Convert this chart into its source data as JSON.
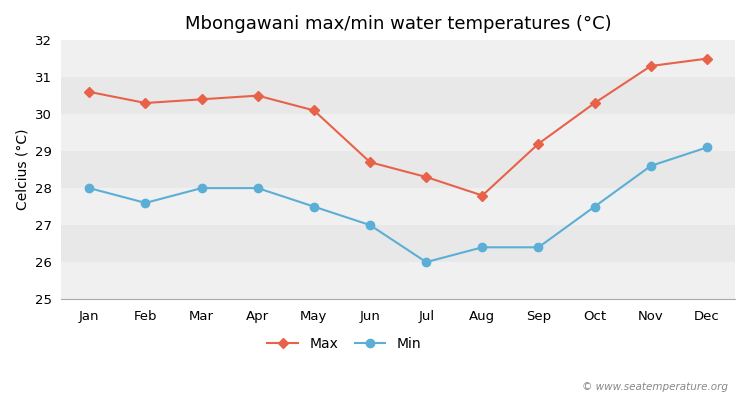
{
  "title": "Mbongawani max/min water temperatures (°C)",
  "ylabel": "Celcius (°C)",
  "months": [
    "Jan",
    "Feb",
    "Mar",
    "Apr",
    "May",
    "Jun",
    "Jul",
    "Aug",
    "Sep",
    "Oct",
    "Nov",
    "Dec"
  ],
  "max_values": [
    30.6,
    30.3,
    30.4,
    30.5,
    30.1,
    28.7,
    28.3,
    27.8,
    29.2,
    30.3,
    31.3,
    31.5
  ],
  "min_values": [
    28.0,
    27.6,
    28.0,
    28.0,
    27.5,
    27.0,
    26.0,
    26.4,
    26.4,
    27.5,
    28.6,
    29.1
  ],
  "max_color": "#e8624a",
  "min_color": "#5bafd6",
  "bg_color": "#ffffff",
  "band_colors": [
    "#f0f0f0",
    "#e8e8e8"
  ],
  "ylim": [
    25,
    32
  ],
  "yticks": [
    25,
    26,
    27,
    28,
    29,
    30,
    31,
    32
  ],
  "legend_labels": [
    "Max",
    "Min"
  ],
  "watermark": "© www.seatemperature.org",
  "title_fontsize": 13,
  "axis_label_fontsize": 10,
  "tick_fontsize": 9.5,
  "legend_fontsize": 10
}
